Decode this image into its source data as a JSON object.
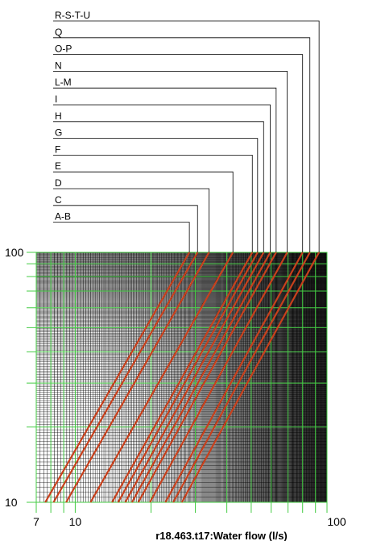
{
  "chart_data": {
    "type": "line",
    "xlabel": "r18.463.t17:Water flow (l/s)",
    "ylabel": "",
    "xscale": "log",
    "yscale": "log",
    "xlim": [
      7,
      100
    ],
    "ylim": [
      10,
      100
    ],
    "x_tick_labels": [
      "7",
      "10",
      "100"
    ],
    "y_tick_labels": [
      "10",
      "100"
    ],
    "grid": true,
    "grid_color_major": "#44cc44",
    "grid_color_minor": "#000000",
    "line_color": "#c8401c",
    "series": [
      {
        "name": "A-B",
        "points": [
          [
            7.6,
            10
          ],
          [
            28.4,
            100
          ]
        ]
      },
      {
        "name": "C",
        "points": [
          [
            8.2,
            10
          ],
          [
            30.6,
            100
          ]
        ]
      },
      {
        "name": "D",
        "points": [
          [
            9.2,
            10
          ],
          [
            34.0,
            100
          ]
        ]
      },
      {
        "name": "E",
        "points": [
          [
            11.5,
            10
          ],
          [
            42.3,
            100
          ]
        ]
      },
      {
        "name": "F",
        "points": [
          [
            14.0,
            10
          ],
          [
            50.5,
            100
          ]
        ]
      },
      {
        "name": "G",
        "points": [
          [
            14.8,
            10
          ],
          [
            53.0,
            100
          ]
        ]
      },
      {
        "name": "H",
        "points": [
          [
            15.8,
            10
          ],
          [
            56.0,
            100
          ]
        ]
      },
      {
        "name": "I",
        "points": [
          [
            16.8,
            10
          ],
          [
            59.5,
            100
          ]
        ]
      },
      {
        "name": "L-M",
        "points": [
          [
            17.8,
            10
          ],
          [
            62.8,
            100
          ]
        ]
      },
      {
        "name": "N",
        "points": [
          [
            19.8,
            10
          ],
          [
            69.5,
            100
          ]
        ]
      },
      {
        "name": "O-P",
        "points": [
          [
            22.8,
            10
          ],
          [
            80.0,
            100
          ]
        ]
      },
      {
        "name": "Q",
        "points": [
          [
            24.5,
            10
          ],
          [
            85.5,
            100
          ]
        ]
      },
      {
        "name": "R-S-T-U",
        "points": [
          [
            26.5,
            10
          ],
          [
            93.0,
            100
          ]
        ]
      }
    ]
  }
}
